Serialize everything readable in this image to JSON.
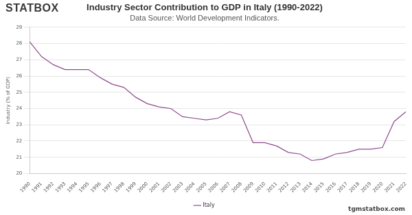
{
  "chart_data": {
    "type": "line",
    "title": "Industry Sector Contribution to GDP in Italy (1990-2022)",
    "subtitle": "Data Source: World Development Indicators.",
    "y_label": "Industry (% of GDP)",
    "annotations": [
      "STATBOX",
      "tgmstatbox.com"
    ],
    "categories": [
      "1990",
      "1991",
      "1992",
      "1993",
      "1994",
      "1995",
      "1996",
      "1997",
      "1998",
      "1999",
      "2000",
      "2001",
      "2002",
      "2003",
      "2004",
      "2005",
      "2006",
      "2007",
      "2008",
      "2009",
      "2010",
      "2011",
      "2012",
      "2013",
      "2014",
      "2015",
      "2016",
      "2017",
      "2018",
      "2019",
      "2020",
      "2021",
      "2022"
    ],
    "series": [
      {
        "name": "Italy",
        "color": "#8e4a8e",
        "values": [
          28.1,
          27.2,
          26.7,
          26.4,
          26.4,
          26.4,
          25.9,
          25.5,
          25.3,
          24.7,
          24.3,
          24.1,
          24.0,
          23.5,
          23.4,
          23.3,
          23.4,
          23.8,
          23.6,
          21.9,
          21.9,
          21.7,
          21.3,
          21.2,
          20.8,
          20.9,
          21.2,
          21.3,
          21.5,
          21.5,
          21.6,
          23.2,
          23.8
        ]
      }
    ],
    "ylim": [
      20,
      29
    ],
    "yticks": [
      20,
      21,
      22,
      23,
      24,
      25,
      26,
      27,
      28,
      29
    ],
    "grid": true,
    "legend": "bottom",
    "marker": "none",
    "line_style": "solid"
  }
}
